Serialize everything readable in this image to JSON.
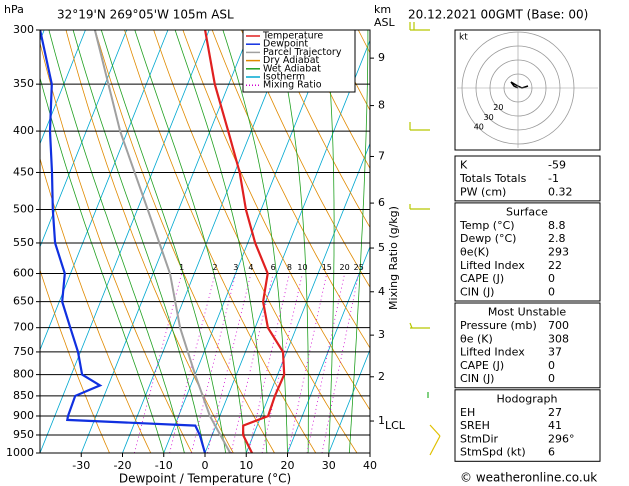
{
  "header": {
    "location": "32°19'N  269°05'W  105m ASL",
    "datetime": "20.12.2021  00GMT  (Base: 00)",
    "footer": "© weatheronline.co.uk"
  },
  "chart_data": {
    "type": "skewt",
    "y_label": "hPa",
    "x_label": "Dewpoint / Temperature (°C)",
    "xlim": [
      -40,
      40
    ],
    "xticks": [
      -30,
      -20,
      -10,
      0,
      10,
      20,
      30,
      40
    ],
    "ylim": [
      1000,
      300
    ],
    "yticks": [
      300,
      350,
      400,
      450,
      500,
      550,
      600,
      650,
      700,
      750,
      800,
      850,
      900,
      950,
      1000
    ],
    "log_y": true,
    "series": [
      {
        "name": "Temperature",
        "color": "#e02020",
        "pressure": [
          1000,
          950,
          925,
          900,
          850,
          800,
          750,
          700,
          650,
          600,
          550,
          500,
          450,
          400,
          350,
          300
        ],
        "values": [
          11.4,
          7.5,
          6.6,
          11.7,
          11.4,
          11.6,
          9.1,
          3.1,
          -0.6,
          -2.2,
          -8.2,
          -13.7,
          -18.8,
          -25.6,
          -33.4,
          -41
        ]
      },
      {
        "name": "Dewpoint",
        "color": "#1030e0",
        "pressure": [
          1000,
          950,
          925,
          910,
          900,
          850,
          825,
          800,
          750,
          700,
          650,
          600,
          550,
          500,
          450,
          400,
          350,
          300
        ],
        "values": [
          0,
          -3,
          -5,
          -36.6,
          -36.8,
          -37,
          -32,
          -37.4,
          -40.6,
          -44.8,
          -49.3,
          -51.4,
          -56.7,
          -60.5,
          -64.3,
          -68.8,
          -72.9,
          -81
        ]
      },
      {
        "name": "Parcel Trajectory",
        "color": "#a0a0a0",
        "pressure": [
          1000,
          900,
          800,
          700,
          600,
          500,
          400,
          300
        ],
        "values": [
          6.1,
          -2.4,
          -10,
          -18.2,
          -25.9,
          -37.5,
          -51.8,
          -67.7
        ]
      }
    ],
    "legend_extra": [
      {
        "name": "Dry Adiabat",
        "color": "#e08a00"
      },
      {
        "name": "Wet Adiabat",
        "color": "#20a020"
      },
      {
        "name": "Isotherm",
        "color": "#00a8d0"
      },
      {
        "name": "Mixing Ratio",
        "color": "#d000d0"
      }
    ],
    "km_label": [
      "km",
      "ASL"
    ],
    "km_ticks": {
      "labels": [
        1,
        2,
        3,
        4,
        5,
        6,
        7,
        8,
        9
      ],
      "pressure": [
        913,
        805,
        715,
        632,
        558,
        491,
        430,
        372,
        325
      ]
    },
    "lcl_label": "LCL",
    "mixing_ratio_label": "Mixing Ratio (g/kg)",
    "mixing_ratios": [
      1,
      2,
      3,
      4,
      6,
      8,
      10,
      15,
      20,
      25
    ],
    "mixing_label_pressure": 600
  },
  "hodograph": {
    "unit": "kt",
    "rings": [
      10,
      20,
      30,
      40
    ]
  },
  "tables": [
    {
      "rows": [
        [
          "K",
          -59
        ],
        [
          "Totals Totals",
          -1
        ],
        [
          "PW (cm)",
          0.32
        ]
      ]
    },
    {
      "title": "Surface",
      "rows": [
        [
          "Temp (°C)",
          8.8
        ],
        [
          "Dewp (°C)",
          2.8
        ],
        [
          "θe(K)",
          293
        ],
        [
          "Lifted Index",
          22
        ],
        [
          "CAPE (J)",
          0
        ],
        [
          "CIN (J)",
          0
        ]
      ]
    },
    {
      "title": "Most Unstable",
      "rows": [
        [
          "Pressure (mb)",
          700
        ],
        [
          "θe (K)",
          308
        ],
        [
          "Lifted Index",
          37
        ],
        [
          "CAPE (J)",
          0
        ],
        [
          "CIN (J)",
          0
        ]
      ]
    },
    {
      "title": "Hodograph",
      "rows": [
        [
          "EH",
          27
        ],
        [
          "SREH",
          41
        ],
        [
          "StmDir",
          "296°"
        ],
        [
          "StmSpd (kt)",
          6
        ]
      ]
    }
  ]
}
